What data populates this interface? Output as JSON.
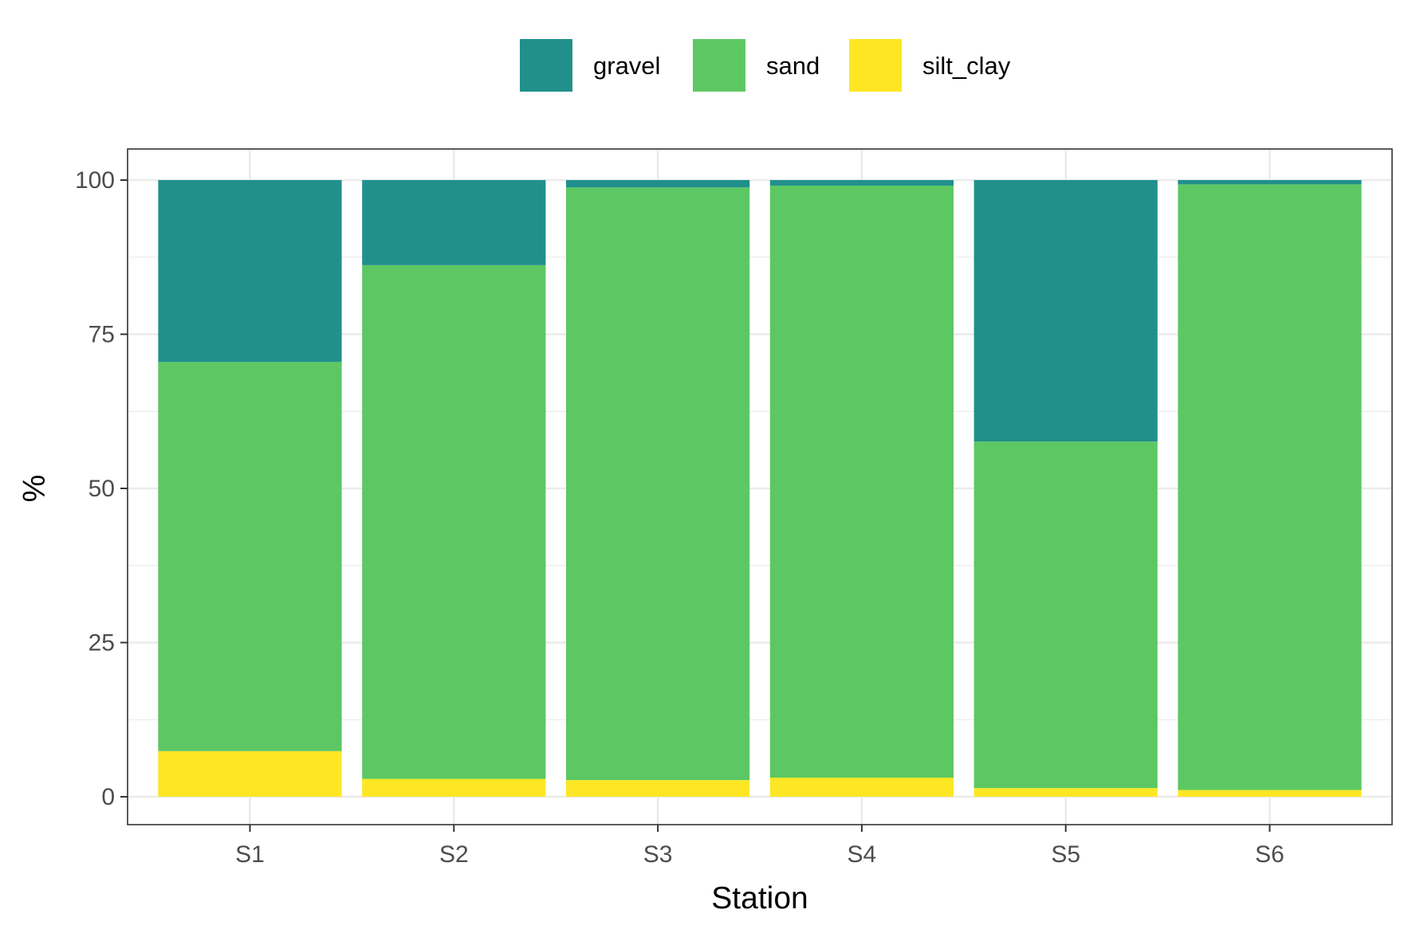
{
  "chart_data": {
    "type": "bar",
    "stacked": true,
    "title": "",
    "xlabel": "Station",
    "ylabel": "%",
    "categories": [
      "S1",
      "S2",
      "S3",
      "S4",
      "S5",
      "S6"
    ],
    "ylim": [
      0,
      100
    ],
    "yticks": [
      0,
      25,
      50,
      75,
      100
    ],
    "grid": true,
    "legend_position": "top",
    "series": [
      {
        "name": "gravel",
        "color": "#21908C",
        "values": [
          29.5,
          13.8,
          1.2,
          0.9,
          42.4,
          0.7
        ]
      },
      {
        "name": "sand",
        "color": "#5DC863",
        "values": [
          63.1,
          83.3,
          96.1,
          96.0,
          56.2,
          98.2
        ]
      },
      {
        "name": "silt_clay",
        "color": "#FDE725",
        "values": [
          7.4,
          2.9,
          2.7,
          3.1,
          1.4,
          1.1
        ]
      }
    ]
  }
}
